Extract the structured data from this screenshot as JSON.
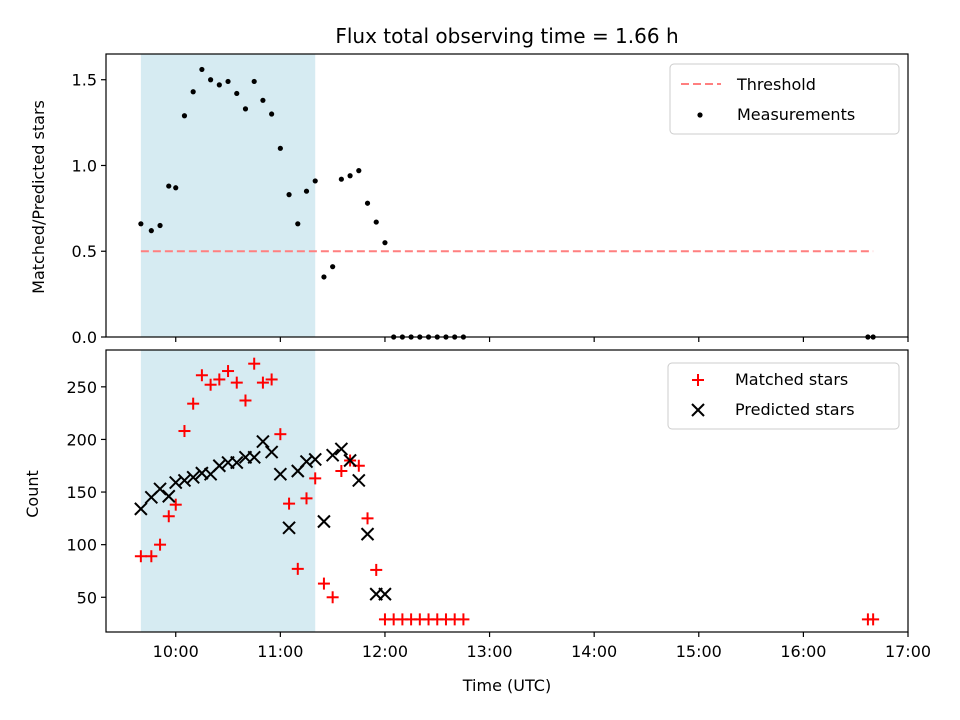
{
  "chart_data": [
    {
      "type": "scatter",
      "title": "Flux total observing time = 1.66 h",
      "xlabel": "",
      "ylabel": "Matched/Predicted stars",
      "xlim": [
        "09:20",
        "17:00"
      ],
      "ylim": [
        0,
        1.65
      ],
      "yticks": [
        0.0,
        0.5,
        1.0,
        1.5
      ],
      "ytick_labels": [
        "0.0",
        "0.5",
        "1.0",
        "1.5"
      ],
      "xticks": [
        "10:00",
        "11:00",
        "12:00",
        "13:00",
        "14:00",
        "15:00",
        "16:00",
        "17:00"
      ],
      "show_xtick_labels": false,
      "grid": false,
      "legend_position": "top-right",
      "shaded_span": {
        "from": "09:40",
        "to": "11:20",
        "color": "#add8e6"
      },
      "series": [
        {
          "name": "Threshold",
          "kind": "line",
          "style": "dashed",
          "color": "#ff7f7f",
          "x": [
            "09:40",
            "16:40"
          ],
          "y": [
            0.5,
            0.5
          ]
        },
        {
          "name": "Measurements",
          "kind": "points",
          "color": "#000000",
          "x": [
            "09:40",
            "09:46",
            "09:51",
            "09:56",
            "10:00",
            "10:05",
            "10:10",
            "10:15",
            "10:20",
            "10:25",
            "10:30",
            "10:35",
            "10:40",
            "10:45",
            "10:50",
            "10:55",
            "11:00",
            "11:05",
            "11:10",
            "11:15",
            "11:20",
            "11:25",
            "11:30",
            "11:35",
            "11:40",
            "11:45",
            "11:50",
            "11:55",
            "12:00",
            "12:05",
            "12:10",
            "12:15",
            "12:20",
            "12:25",
            "12:30",
            "12:35",
            "12:40",
            "12:45",
            "16:37",
            "16:40"
          ],
          "y": [
            0.66,
            0.62,
            0.65,
            0.88,
            0.87,
            1.29,
            1.43,
            1.56,
            1.5,
            1.47,
            1.49,
            1.42,
            1.33,
            1.49,
            1.38,
            1.3,
            1.1,
            0.83,
            0.66,
            0.85,
            0.91,
            0.35,
            0.41,
            0.92,
            0.94,
            0.97,
            0.78,
            0.67,
            0.55,
            0.0,
            0.0,
            0.0,
            0.0,
            0.0,
            0.0,
            0.0,
            0.0,
            0.0,
            0.0,
            0.0
          ]
        }
      ]
    },
    {
      "type": "scatter",
      "title": "",
      "xlabel": "Time (UTC)",
      "ylabel": "Count",
      "xlim": [
        "09:20",
        "17:00"
      ],
      "ylim": [
        17,
        285
      ],
      "yticks": [
        50,
        100,
        150,
        200,
        250
      ],
      "ytick_labels": [
        "50",
        "100",
        "150",
        "200",
        "250"
      ],
      "xticks": [
        "10:00",
        "11:00",
        "12:00",
        "13:00",
        "14:00",
        "15:00",
        "16:00",
        "17:00"
      ],
      "xtick_labels": [
        "10:00",
        "11:00",
        "12:00",
        "13:00",
        "14:00",
        "15:00",
        "16:00",
        "17:00"
      ],
      "grid": false,
      "legend_position": "top-right",
      "shaded_span": {
        "from": "09:40",
        "to": "11:20",
        "color": "#add8e6"
      },
      "series": [
        {
          "name": "Matched stars",
          "kind": "plus",
          "color": "#ff0000",
          "x": [
            "09:40",
            "09:46",
            "09:51",
            "09:56",
            "10:00",
            "10:05",
            "10:10",
            "10:15",
            "10:20",
            "10:25",
            "10:30",
            "10:35",
            "10:40",
            "10:45",
            "10:50",
            "10:55",
            "11:00",
            "11:05",
            "11:10",
            "11:15",
            "11:20",
            "11:25",
            "11:30",
            "11:35",
            "11:40",
            "11:45",
            "11:50",
            "11:55",
            "12:00",
            "12:05",
            "12:10",
            "12:15",
            "12:20",
            "12:25",
            "12:30",
            "12:35",
            "12:40",
            "12:45",
            "16:37",
            "16:40"
          ],
          "y": [
            89,
            89,
            100,
            127,
            138,
            208,
            234,
            261,
            252,
            257,
            265,
            254,
            237,
            272,
            254,
            257,
            205,
            139,
            77,
            144,
            163,
            63,
            50,
            170,
            180,
            175,
            125,
            76,
            29,
            29,
            29,
            29,
            29,
            29,
            29,
            29,
            29,
            29,
            29,
            29
          ]
        },
        {
          "name": "Predicted stars",
          "kind": "cross",
          "color": "#000000",
          "x": [
            "09:40",
            "09:46",
            "09:51",
            "09:56",
            "10:00",
            "10:05",
            "10:10",
            "10:15",
            "10:20",
            "10:25",
            "10:30",
            "10:35",
            "10:40",
            "10:45",
            "10:50",
            "10:55",
            "11:00",
            "11:05",
            "11:10",
            "11:15",
            "11:20",
            "11:25",
            "11:30",
            "11:35",
            "11:40",
            "11:45",
            "11:50",
            "11:55",
            "12:00"
          ],
          "y": [
            134,
            145,
            153,
            146,
            159,
            161,
            164,
            168,
            167,
            175,
            178,
            178,
            183,
            183,
            198,
            188,
            167,
            116,
            170,
            179,
            181,
            122,
            185,
            191,
            180,
            161,
            110,
            53,
            53
          ]
        }
      ]
    }
  ]
}
